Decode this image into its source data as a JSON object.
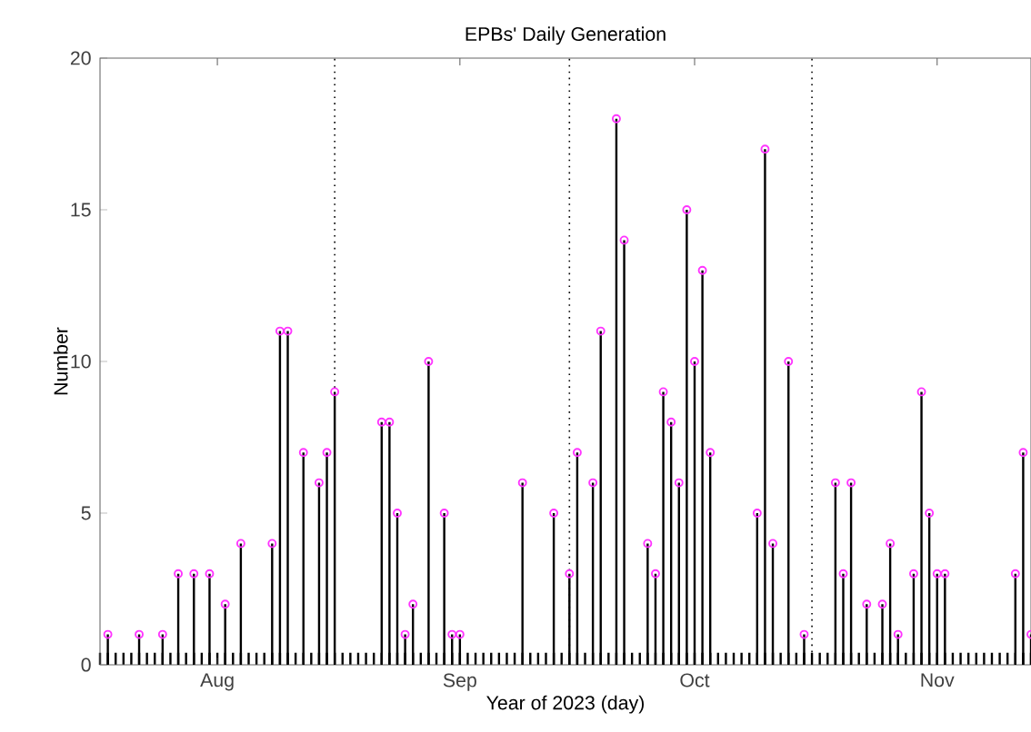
{
  "chart_data": {
    "type": "lollipop",
    "title": "EPBs' Daily Generation",
    "xlabel": "Year of 2023 (day)",
    "ylabel": "Number",
    "xlim": [
      "2023-07-17",
      "2023-11-13"
    ],
    "xticks": [
      {
        "value": "2023-08-01",
        "label": "Aug"
      },
      {
        "value": "2023-09-01",
        "label": "Sep"
      },
      {
        "value": "2023-10-01",
        "label": "Oct"
      },
      {
        "value": "2023-11-01",
        "label": "Nov"
      }
    ],
    "ylim": [
      0,
      20
    ],
    "yticks": [
      0,
      5,
      10,
      15,
      20
    ],
    "marker": "circle",
    "grid": false,
    "ref_lines": [
      {
        "axis": "x",
        "value": "2023-08-16",
        "line_style": "dotted",
        "color": "#000000"
      },
      {
        "axis": "x",
        "value": "2023-09-15",
        "line_style": "dotted",
        "color": "#000000"
      },
      {
        "axis": "x",
        "value": "2023-10-16",
        "line_style": "dotted",
        "color": "#000000"
      }
    ],
    "series": [
      {
        "color": "#ff33ff",
        "x": [
          "2023-07-18",
          "2023-07-22",
          "2023-07-25",
          "2023-07-27",
          "2023-07-29",
          "2023-07-31",
          "2023-08-02",
          "2023-08-04",
          "2023-08-08",
          "2023-08-09",
          "2023-08-10",
          "2023-08-12",
          "2023-08-14",
          "2023-08-15",
          "2023-08-16",
          "2023-08-22",
          "2023-08-23",
          "2023-08-24",
          "2023-08-25",
          "2023-08-26",
          "2023-08-28",
          "2023-08-30",
          "2023-08-31",
          "2023-09-01",
          "2023-09-09",
          "2023-09-13",
          "2023-09-15",
          "2023-09-16",
          "2023-09-18",
          "2023-09-19",
          "2023-09-21",
          "2023-09-22",
          "2023-09-25",
          "2023-09-26",
          "2023-09-27",
          "2023-09-28",
          "2023-09-29",
          "2023-09-30",
          "2023-10-01",
          "2023-10-02",
          "2023-10-03",
          "2023-10-09",
          "2023-10-10",
          "2023-10-11",
          "2023-10-13",
          "2023-10-15",
          "2023-10-19",
          "2023-10-20",
          "2023-10-21",
          "2023-10-23",
          "2023-10-25",
          "2023-10-26",
          "2023-10-27",
          "2023-10-29",
          "2023-10-30",
          "2023-10-31",
          "2023-11-01",
          "2023-11-02",
          "2023-11-11",
          "2023-11-12",
          "2023-11-13"
        ],
        "values": [
          1,
          1,
          1,
          3,
          3,
          3,
          2,
          4,
          4,
          11,
          11,
          7,
          6,
          7,
          9,
          8,
          8,
          5,
          1,
          2,
          10,
          5,
          1,
          1,
          6,
          5,
          3,
          7,
          6,
          11,
          18,
          14,
          4,
          3,
          9,
          8,
          6,
          15,
          10,
          13,
          7,
          5,
          17,
          4,
          10,
          1,
          6,
          3,
          6,
          2,
          2,
          4,
          1,
          3,
          9,
          5,
          3,
          3,
          3,
          7,
          1
        ]
      }
    ]
  }
}
